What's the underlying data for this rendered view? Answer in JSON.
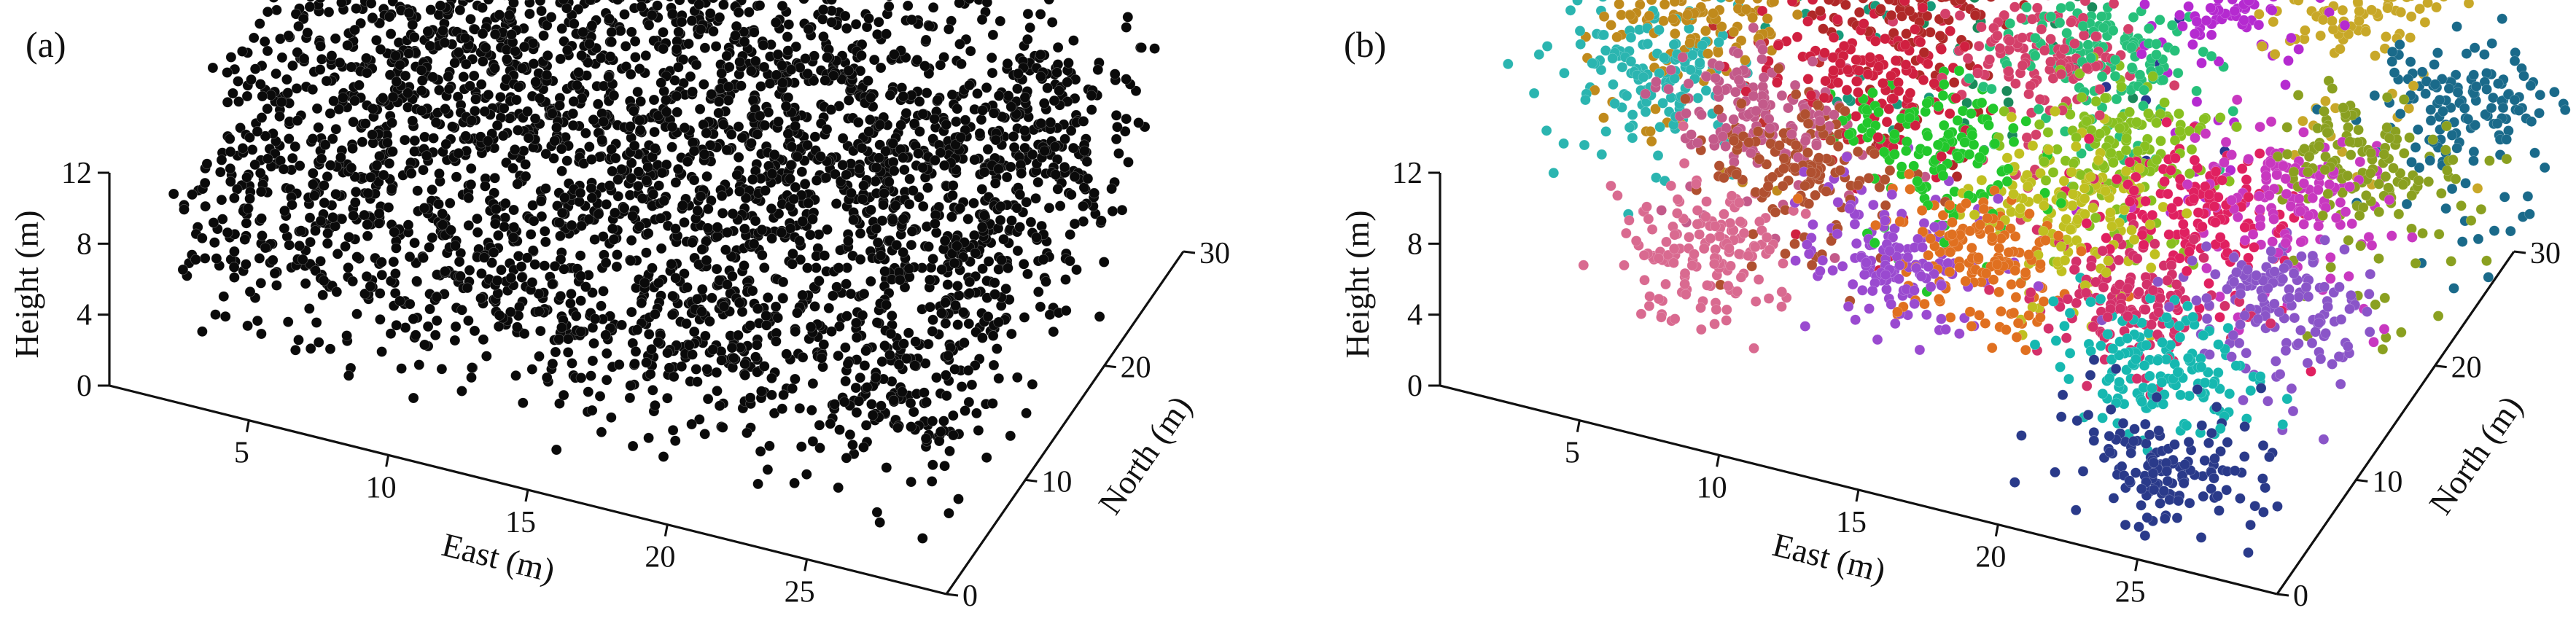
{
  "chart_data": [
    {
      "type": "scatter",
      "panel_label": "(a)",
      "title": "",
      "xlabel": "East (m)",
      "ylabel": "North (m)",
      "zlabel": "Height (m)",
      "x_ticks": [
        5,
        10,
        15,
        20,
        25
      ],
      "y_ticks": [
        0,
        10,
        20,
        30
      ],
      "z_ticks": [
        0,
        4,
        8,
        12
      ],
      "xlim": [
        0,
        30
      ],
      "ylim": [
        0,
        30
      ],
      "zlim": [
        0,
        12
      ],
      "color_mode": "single",
      "point_color": "#0a0a0a",
      "grid": false,
      "legend": "none"
    },
    {
      "type": "scatter",
      "panel_label": "(b)",
      "title": "",
      "xlabel": "East (m)",
      "ylabel": "North (m)",
      "zlabel": "Height (m)",
      "x_ticks": [
        5,
        10,
        15,
        20,
        25
      ],
      "y_ticks": [
        0,
        10,
        20,
        30
      ],
      "z_ticks": [
        0,
        4,
        8,
        12
      ],
      "xlim": [
        0,
        30
      ],
      "ylim": [
        0,
        30
      ],
      "zlim": [
        0,
        12
      ],
      "color_mode": "per-tree",
      "grid": false,
      "legend": "none",
      "trees": [
        {
          "color": "#2bb5b0",
          "east": 2,
          "north": 19,
          "height": 7
        },
        {
          "color": "#c08a1c",
          "east": 3,
          "north": 21,
          "height": 9
        },
        {
          "color": "#c35a8a",
          "east": 7,
          "north": 16,
          "height": 8
        },
        {
          "color": "#d96a90",
          "east": 7,
          "north": 9,
          "height": 5
        },
        {
          "color": "#b05030",
          "east": 9,
          "north": 14,
          "height": 7
        },
        {
          "color": "#c0302e",
          "east": 5,
          "north": 26,
          "height": 11
        },
        {
          "color": "#179a7a",
          "east": 7,
          "north": 27,
          "height": 10
        },
        {
          "color": "#b02828",
          "east": 10,
          "north": 24,
          "height": 10
        },
        {
          "color": "#22c82c",
          "east": 13,
          "north": 17,
          "height": 8
        },
        {
          "color": "#9a4ad0",
          "east": 13,
          "north": 12,
          "height": 5
        },
        {
          "color": "#e07020",
          "east": 16,
          "north": 12,
          "height": 6
        },
        {
          "color": "#d4406a",
          "east": 15,
          "north": 23,
          "height": 10
        },
        {
          "color": "#1a8a5a",
          "east": 13,
          "north": 28,
          "height": 13
        },
        {
          "color": "#26c07a",
          "east": 17,
          "north": 24,
          "height": 10
        },
        {
          "color": "#2a3590",
          "east": 17,
          "north": 30,
          "height": 13
        },
        {
          "color": "#b52ad0",
          "east": 20,
          "north": 28,
          "height": 12
        },
        {
          "color": "#88c020",
          "east": 19,
          "north": 20,
          "height": 8
        },
        {
          "color": "#e02060",
          "east": 22,
          "north": 18,
          "height": 7
        },
        {
          "color": "#c8a828",
          "east": 24,
          "north": 30,
          "height": 12
        },
        {
          "color": "#d4306a",
          "east": 21,
          "north": 13,
          "height": 5
        },
        {
          "color": "#8a55c8",
          "east": 26,
          "north": 14,
          "height": 6
        },
        {
          "color": "#8aa020",
          "east": 27,
          "north": 22,
          "height": 9
        },
        {
          "color": "#c838c0",
          "east": 25,
          "north": 20,
          "height": 8
        },
        {
          "color": "#1a6a8a",
          "east": 29,
          "north": 27,
          "height": 10
        },
        {
          "color": "#16b8b0",
          "east": 23,
          "north": 10,
          "height": 4
        },
        {
          "color": "#2a3a8a",
          "east": 25,
          "north": 4,
          "height": 3
        },
        {
          "color": "#c0c020",
          "east": 18,
          "north": 16,
          "height": 7
        },
        {
          "color": "#d02040",
          "east": 10,
          "north": 20,
          "height": 9
        }
      ]
    }
  ]
}
